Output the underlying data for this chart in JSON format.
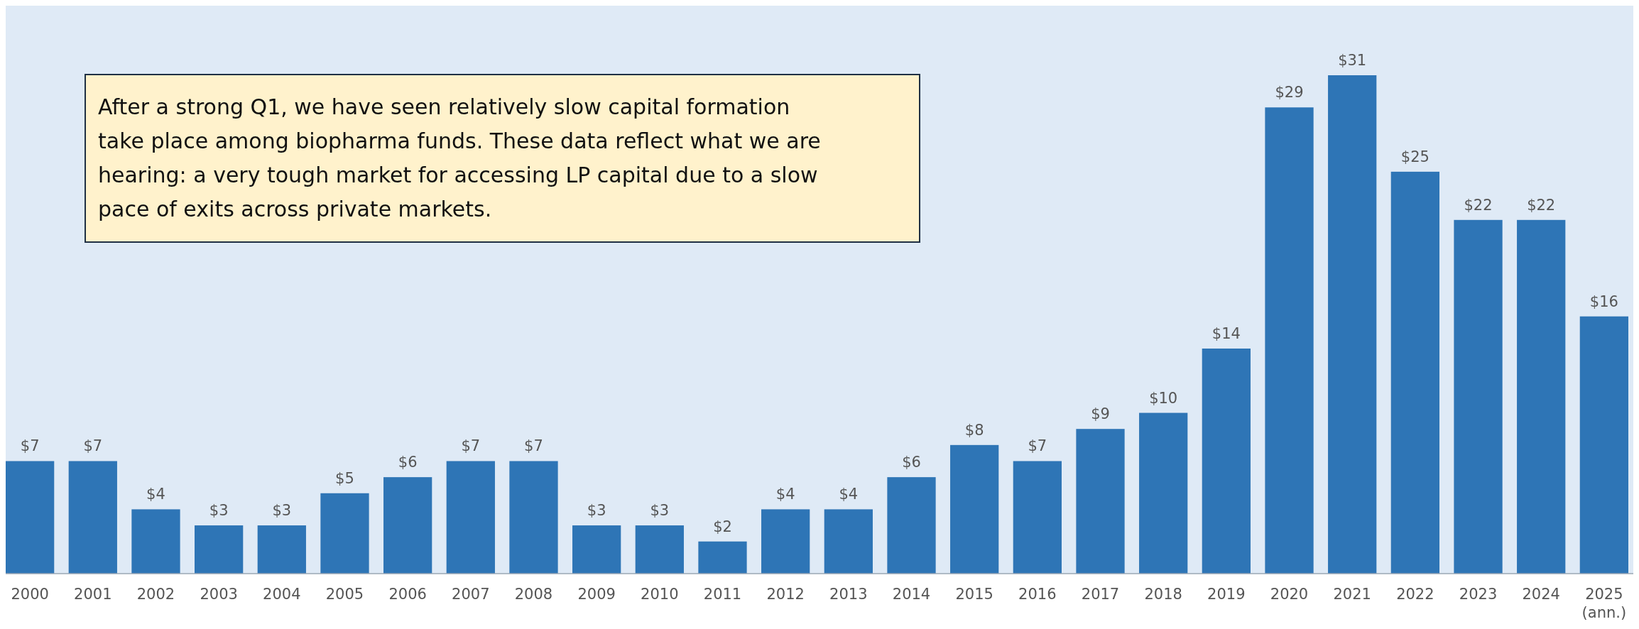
{
  "chart_data": {
    "type": "bar",
    "categories": [
      "2000",
      "2001",
      "2002",
      "2003",
      "2004",
      "2005",
      "2006",
      "2007",
      "2008",
      "2009",
      "2010",
      "2011",
      "2012",
      "2013",
      "2014",
      "2015",
      "2016",
      "2017",
      "2018",
      "2019",
      "2020",
      "2021",
      "2022",
      "2023",
      "2024",
      "2025\n(ann.)"
    ],
    "values": [
      7,
      7,
      4,
      3,
      3,
      5,
      6,
      7,
      7,
      3,
      3,
      2,
      4,
      4,
      6,
      8,
      7,
      9,
      10,
      14,
      29,
      31,
      25,
      22,
      22,
      16
    ],
    "value_labels": [
      "$7",
      "$7",
      "$4",
      "$3",
      "$3",
      "$5",
      "$6",
      "$7",
      "$7",
      "$3",
      "$3",
      "$2",
      "$4",
      "$4",
      "$6",
      "$8",
      "$7",
      "$9",
      "$10",
      "$14",
      "$29",
      "$31",
      "$25",
      "$22",
      "$22",
      "$16"
    ],
    "color": "#2e75b6",
    "annotations": [
      "After a strong Q1, we have seen relatively slow capital formation take place among biopharma funds. These data reflect what we are hearing: a very tough market for accessing LP capital due to a slow pace of exits across private markets."
    ]
  }
}
